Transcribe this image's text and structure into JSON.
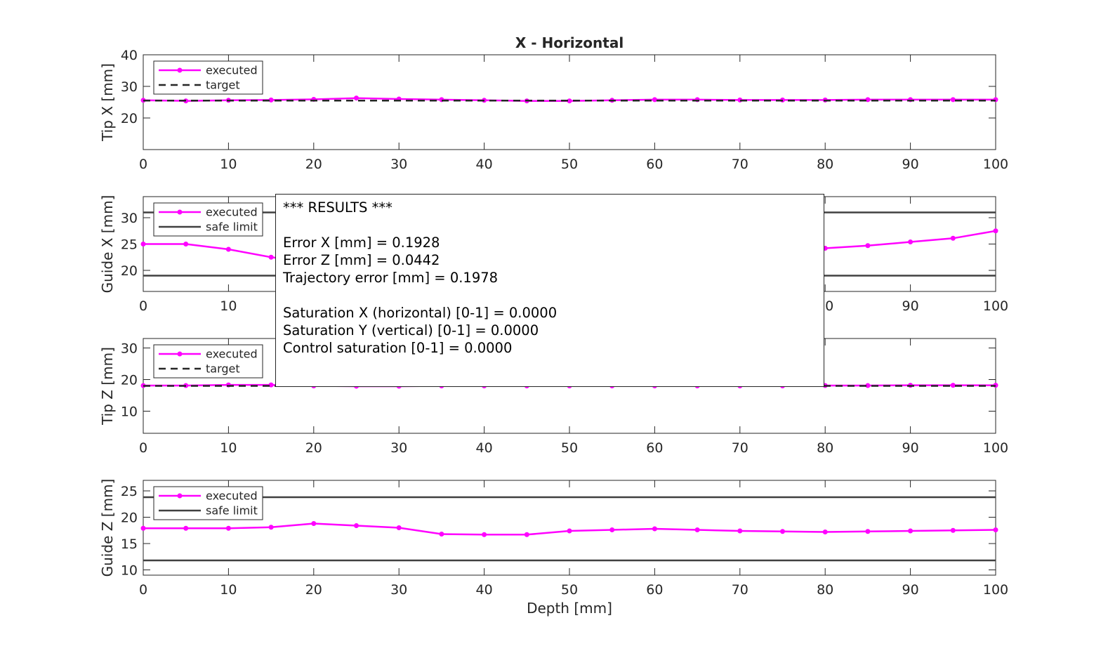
{
  "figure_title": "X - Horizontal",
  "chart_data": [
    {
      "type": "line",
      "title": "X - Horizontal",
      "xlabel": "",
      "ylabel": "Tip X [mm]",
      "xlim": [
        0,
        100
      ],
      "ylim": [
        10,
        40
      ],
      "xticks": [
        0,
        10,
        20,
        30,
        40,
        50,
        60,
        70,
        80,
        90,
        100
      ],
      "yticks": [
        20,
        30,
        40
      ],
      "legend_placement": "top-left",
      "series": [
        {
          "name": "executed",
          "style": "solid-marker",
          "color": "#ff00ff",
          "x": [
            0,
            5,
            10,
            15,
            20,
            25,
            30,
            35,
            40,
            45,
            50,
            55,
            60,
            65,
            70,
            75,
            80,
            85,
            90,
            95,
            100
          ],
          "y": [
            25.6,
            25.4,
            25.6,
            25.7,
            25.9,
            26.3,
            26.0,
            25.8,
            25.6,
            25.4,
            25.4,
            25.6,
            25.8,
            25.8,
            25.7,
            25.7,
            25.7,
            25.8,
            25.8,
            25.8,
            25.8
          ]
        },
        {
          "name": "target",
          "style": "dashed",
          "color": "#262626",
          "x": [
            0,
            100
          ],
          "y": [
            25.5,
            25.5
          ]
        }
      ]
    },
    {
      "type": "line",
      "title": "",
      "xlabel": "",
      "ylabel": "Guide X [mm]",
      "xlim": [
        0,
        100
      ],
      "ylim": [
        16,
        34
      ],
      "xticks": [
        0,
        10,
        20,
        30,
        40,
        50,
        60,
        70,
        80,
        90,
        100
      ],
      "yticks": [
        20,
        25,
        30
      ],
      "legend_placement": "top-left",
      "series": [
        {
          "name": "executed",
          "style": "solid-marker",
          "color": "#ff00ff",
          "x": [
            0,
            5,
            10,
            15,
            20,
            25,
            30,
            35,
            40,
            45,
            50,
            55,
            60,
            65,
            70,
            75,
            80,
            85,
            90,
            95,
            100
          ],
          "y": [
            25.0,
            25.0,
            24.0,
            22.5,
            21.5,
            21.0,
            21.0,
            21.2,
            21.5,
            22.0,
            22.3,
            22.6,
            22.9,
            23.2,
            23.5,
            23.8,
            24.2,
            24.7,
            25.4,
            26.1,
            27.5
          ]
        },
        {
          "name": "safe limit",
          "style": "solid",
          "color": "#404040",
          "x": [
            0,
            100
          ],
          "y": [
            31,
            31
          ]
        },
        {
          "name": "",
          "style": "solid",
          "color": "#404040",
          "x": [
            0,
            100
          ],
          "y": [
            19,
            19
          ]
        }
      ]
    },
    {
      "type": "line",
      "title": "",
      "xlabel": "",
      "ylabel": "Tip Z [mm]",
      "xlim": [
        0,
        100
      ],
      "ylim": [
        3,
        33
      ],
      "xticks": [
        0,
        10,
        20,
        30,
        40,
        50,
        60,
        70,
        80,
        90,
        100
      ],
      "yticks": [
        10,
        20,
        30
      ],
      "legend_placement": "top-left",
      "series": [
        {
          "name": "executed",
          "style": "solid-marker",
          "color": "#ff00ff",
          "x": [
            0,
            5,
            10,
            15,
            20,
            25,
            30,
            35,
            40,
            45,
            50,
            55,
            60,
            65,
            70,
            75,
            80,
            85,
            90,
            95,
            100
          ],
          "y": [
            18.1,
            18.1,
            18.3,
            18.3,
            18.0,
            17.9,
            17.9,
            18.0,
            18.0,
            18.0,
            18.0,
            18.0,
            18.0,
            18.0,
            18.0,
            18.0,
            18.1,
            18.1,
            18.2,
            18.2,
            18.2
          ]
        },
        {
          "name": "target",
          "style": "dashed",
          "color": "#262626",
          "x": [
            0,
            100
          ],
          "y": [
            18.0,
            18.0
          ]
        }
      ]
    },
    {
      "type": "line",
      "title": "",
      "xlabel": "Depth [mm]",
      "ylabel": "Guide Z [mm]",
      "xlim": [
        0,
        100
      ],
      "ylim": [
        9,
        27
      ],
      "xticks": [
        0,
        10,
        20,
        30,
        40,
        50,
        60,
        70,
        80,
        90,
        100
      ],
      "yticks": [
        10,
        15,
        20,
        25
      ],
      "legend_placement": "top-left",
      "series": [
        {
          "name": "executed",
          "style": "solid-marker",
          "color": "#ff00ff",
          "x": [
            0,
            5,
            10,
            15,
            20,
            25,
            30,
            35,
            40,
            45,
            50,
            55,
            60,
            65,
            70,
            75,
            80,
            85,
            90,
            95,
            100
          ],
          "y": [
            17.9,
            17.9,
            17.9,
            18.1,
            18.8,
            18.4,
            18.0,
            16.8,
            16.7,
            16.7,
            17.4,
            17.6,
            17.8,
            17.6,
            17.4,
            17.3,
            17.2,
            17.3,
            17.4,
            17.5,
            17.6
          ]
        },
        {
          "name": "safe limit",
          "style": "solid",
          "color": "#404040",
          "x": [
            0,
            100
          ],
          "y": [
            23.8,
            23.8
          ]
        },
        {
          "name": "",
          "style": "solid",
          "color": "#404040",
          "x": [
            0,
            100
          ],
          "y": [
            11.8,
            11.8
          ]
        }
      ]
    }
  ],
  "results": {
    "header": "*** RESULTS ***",
    "error_x": "Error X [mm] = 0.1928",
    "error_z": "Error Z [mm] = 0.0442",
    "trajectory_error": "Trajectory error [mm] = 0.1978",
    "saturation_x": "Saturation X (horizontal) [0-1] = 0.0000",
    "saturation_y": "Saturation Y (vertical) [0-1] = 0.0000",
    "control_saturation": "Control saturation [0-1] = 0.0000"
  }
}
